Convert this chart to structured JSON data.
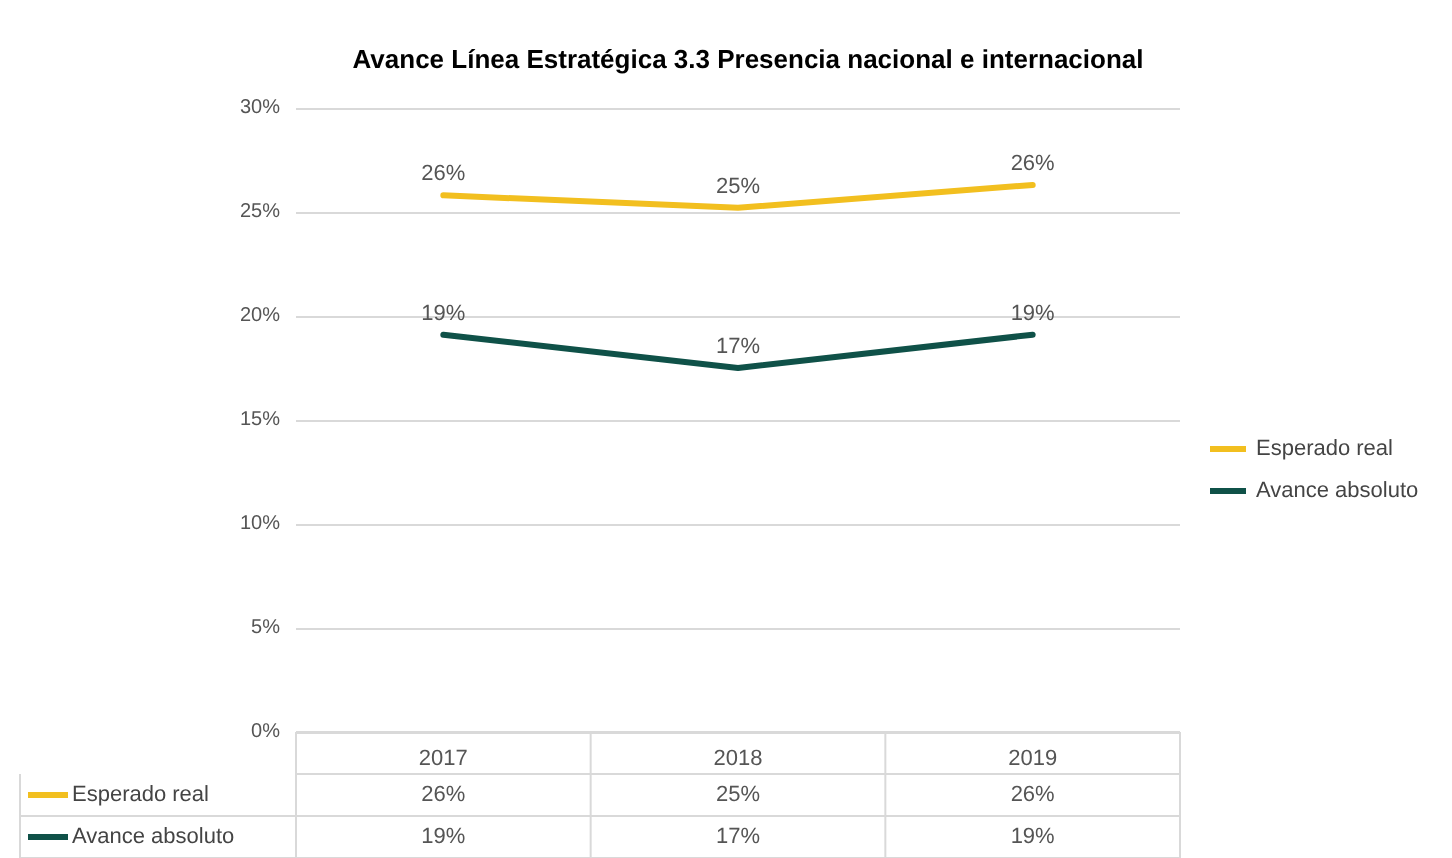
{
  "chart_data": {
    "type": "line",
    "title": "Avance Línea Estratégica 3.3 Presencia nacional e internacional",
    "categories": [
      "2017",
      "2018",
      "2019"
    ],
    "series": [
      {
        "name": "Esperado real",
        "color": "#f2bf1f",
        "values": [
          25.8,
          25.2,
          26.3
        ],
        "value_labels": [
          "26%",
          "25%",
          "26%"
        ]
      },
      {
        "name": "Avance absoluto",
        "color": "#0f5148",
        "values": [
          19.1,
          17.5,
          19.1
        ],
        "value_labels": [
          "19%",
          "17%",
          "19%"
        ]
      }
    ],
    "ylim": [
      0,
      30
    ],
    "yticks": [
      {
        "value": 0,
        "label": "0%"
      },
      {
        "value": 5,
        "label": "5%"
      },
      {
        "value": 10,
        "label": "10%"
      },
      {
        "value": 15,
        "label": "15%"
      },
      {
        "value": 20,
        "label": "20%"
      },
      {
        "value": 25,
        "label": "25%"
      },
      {
        "value": 30,
        "label": "30%"
      }
    ],
    "grid": "y",
    "legend": "right",
    "marker": "none"
  }
}
